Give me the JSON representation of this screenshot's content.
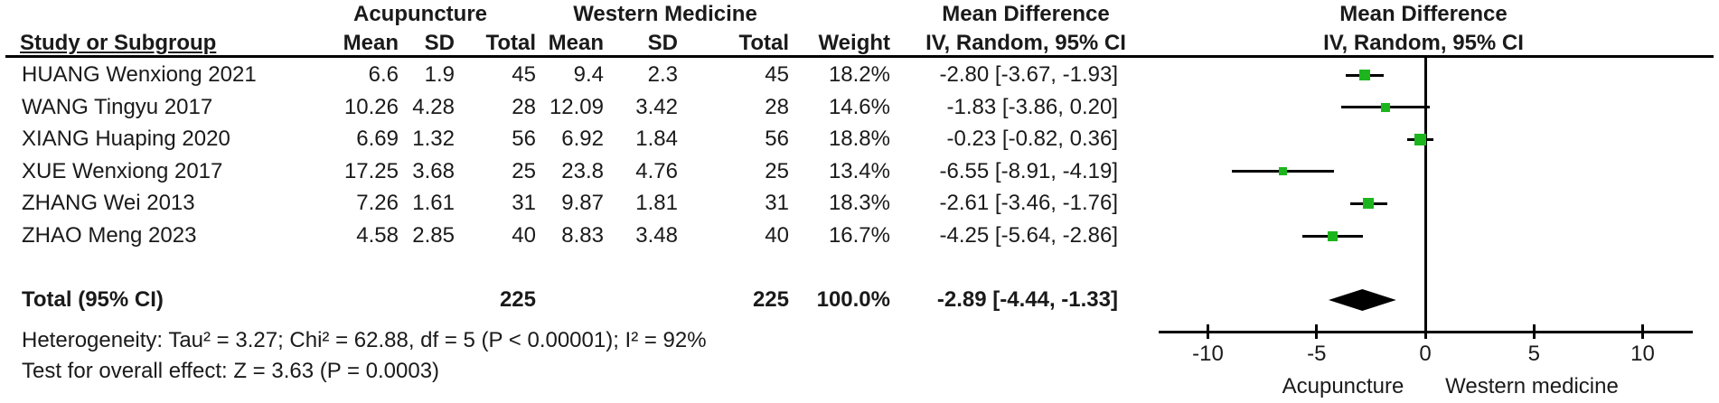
{
  "colors": {
    "marker_green": "#1db51d",
    "line_black": "#000000",
    "text": "#1a1a1a"
  },
  "header": {
    "group1": "Acupuncture",
    "group2": "Western Medicine",
    "md_col_line1": "Mean Difference",
    "md_col_line2": "IV, Random, 95% CI",
    "plot_col_line1": "Mean Difference",
    "plot_col_line2": "IV, Random, 95% CI",
    "study_col": "Study or Subgroup",
    "mean1": "Mean",
    "sd1": "SD",
    "total1": "Total",
    "mean2": "Mean",
    "sd2": "SD",
    "total2": "Total",
    "weight": "Weight"
  },
  "chart_data": {
    "type": "forest",
    "effect_measure": "Mean Difference, IV, Random, 95% CI",
    "x_ticks": [
      -10,
      -5,
      0,
      5,
      10
    ],
    "xlim": [
      -12.3,
      12.3
    ],
    "axis_left_label": "Acupuncture",
    "axis_right_label": "Western medicine",
    "rows": [
      {
        "study": "HUANG Wenxiong 2021",
        "cells": [
          "6.6",
          "1.9",
          "45",
          "9.4",
          "2.3",
          "45",
          "18.2%",
          "-2.80 [-3.67, -1.93]"
        ],
        "md": -2.8,
        "lo": -3.67,
        "hi": -1.93,
        "weight": 18.2
      },
      {
        "study": "WANG Tingyu 2017",
        "cells": [
          "10.26",
          "4.28",
          "28",
          "12.09",
          "3.42",
          "28",
          "14.6%",
          "-1.83 [-3.86, 0.20]"
        ],
        "md": -1.83,
        "lo": -3.86,
        "hi": 0.2,
        "weight": 14.6
      },
      {
        "study": "XIANG Huaping 2020",
        "cells": [
          "6.69",
          "1.32",
          "56",
          "6.92",
          "1.84",
          "56",
          "18.8%",
          "-0.23 [-0.82, 0.36]"
        ],
        "md": -0.23,
        "lo": -0.82,
        "hi": 0.36,
        "weight": 18.8
      },
      {
        "study": "XUE Wenxiong 2017",
        "cells": [
          "17.25",
          "3.68",
          "25",
          "23.8",
          "4.76",
          "25",
          "13.4%",
          "-6.55 [-8.91, -4.19]"
        ],
        "md": -6.55,
        "lo": -8.91,
        "hi": -4.19,
        "weight": 13.4
      },
      {
        "study": "ZHANG Wei 2013",
        "cells": [
          "7.26",
          "1.61",
          "31",
          "9.87",
          "1.81",
          "31",
          "18.3%",
          "-2.61 [-3.46, -1.76]"
        ],
        "md": -2.61,
        "lo": -3.46,
        "hi": -1.76,
        "weight": 18.3
      },
      {
        "study": "ZHAO Meng 2023",
        "cells": [
          "4.58",
          "2.85",
          "40",
          "8.83",
          "3.48",
          "40",
          "16.7%",
          "-4.25 [-5.64, -2.86]"
        ],
        "md": -4.25,
        "lo": -5.64,
        "hi": -2.86,
        "weight": 16.7
      }
    ],
    "total": {
      "label": "Total (95% CI)",
      "total1": "225",
      "total2": "225",
      "weight": "100.0%",
      "ci_text": "-2.89 [-4.44, -1.33]",
      "md": -2.89,
      "lo": -4.44,
      "hi": -1.33
    },
    "heterogeneity": "Heterogeneity: Tau² = 3.27; Chi² = 62.88, df = 5 (P < 0.00001); I² = 92%",
    "overall_effect": "Test for overall effect: Z = 3.63 (P = 0.0003)"
  }
}
